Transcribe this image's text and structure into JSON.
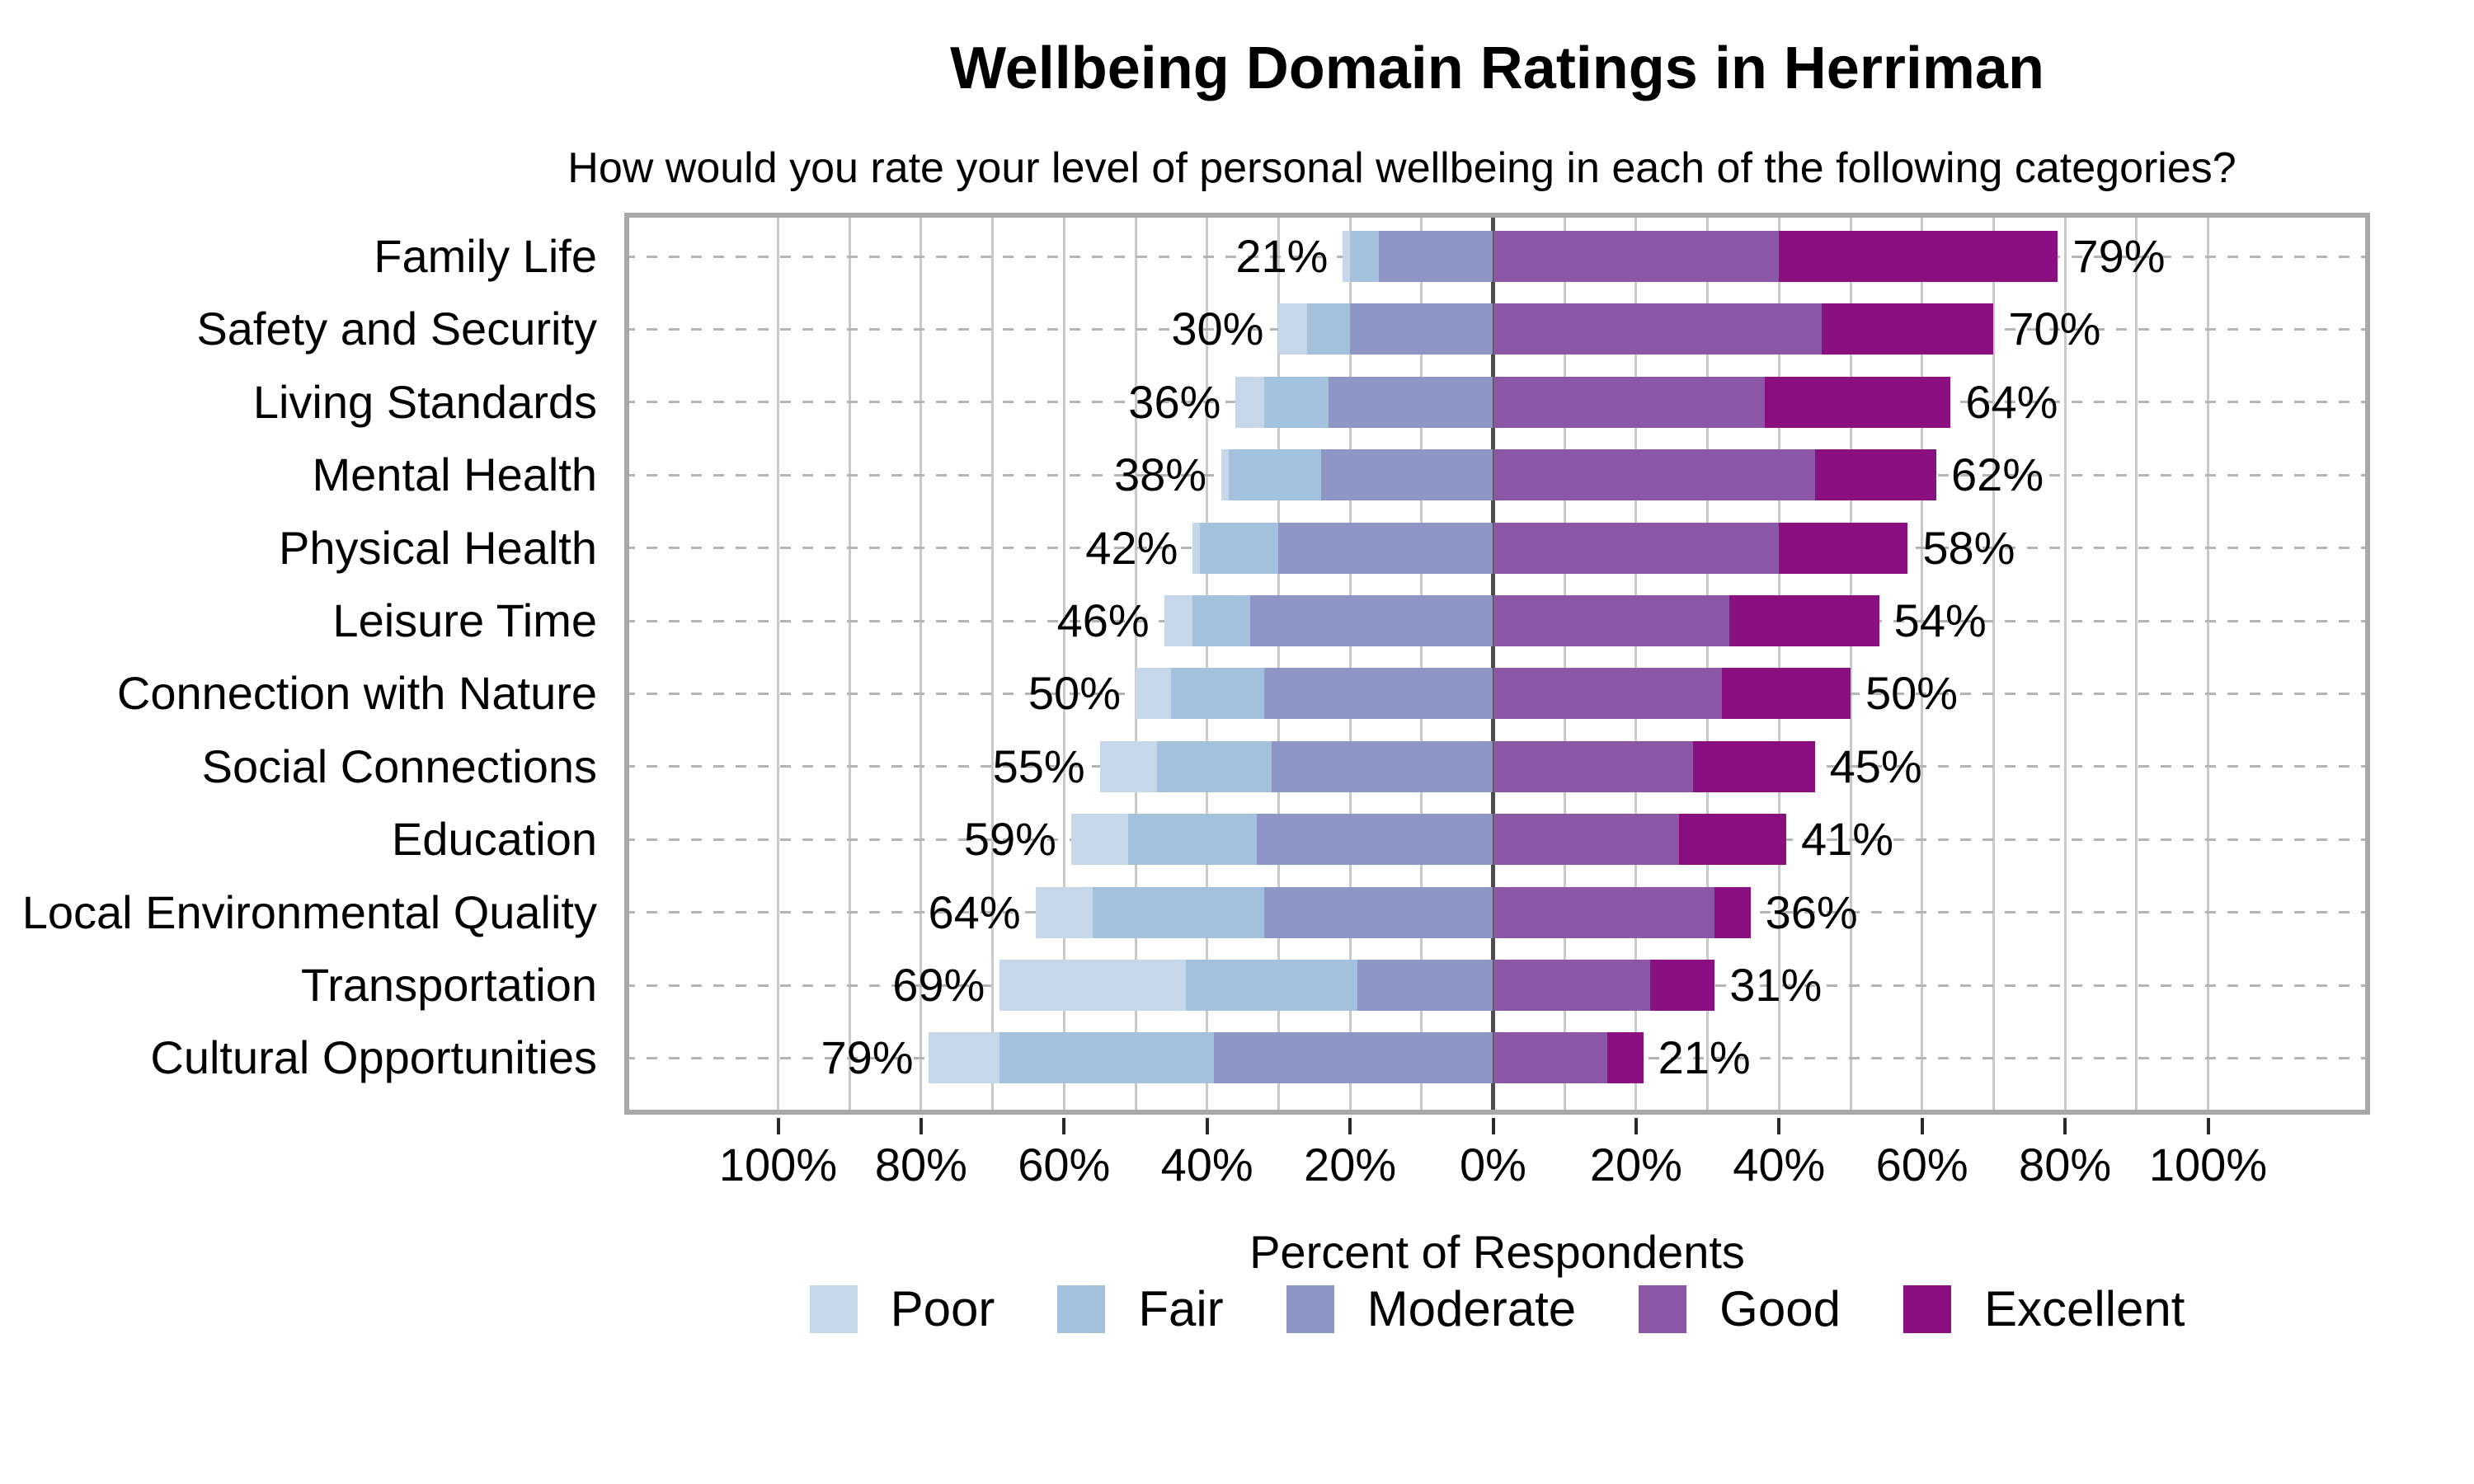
{
  "title": "Wellbeing Domain Ratings in Herriman",
  "subtitle": "How would you rate your level of personal wellbeing in each of the following categories?",
  "xlabel": "Percent of Respondents",
  "colors": {
    "frame": "#a8a8a8",
    "gridline": "#c9c9c9",
    "zero_line": "#4d4d4d",
    "row_dash": "#b4b4b4",
    "text": "#000000"
  },
  "chart_data": {
    "type": "diverging_stacked_bar",
    "orientation": "horizontal",
    "grid": "vertical gridlines every 10%, dashed horizontal line per category",
    "legend_position": "bottom",
    "xlim": [
      -122,
      122
    ],
    "categories": [
      "Family Life",
      "Safety and Security",
      "Living Standards",
      "Mental Health",
      "Physical Health",
      "Leisure Time",
      "Connection with Nature",
      "Social Connections",
      "Education",
      "Local Environmental Quality",
      "Transportation",
      "Cultural Opportunities"
    ],
    "series": [
      {
        "name": "Poor",
        "color": "#c5d7e9",
        "values": [
          1,
          4,
          4,
          1,
          1,
          4,
          5,
          8,
          8,
          8,
          26,
          10
        ]
      },
      {
        "name": "Fair",
        "color": "#a3c0dc",
        "values": [
          4,
          6,
          9,
          13,
          11,
          8,
          13,
          16,
          18,
          24,
          24,
          30
        ]
      },
      {
        "name": "Moderate",
        "color": "#8d96c7",
        "values": [
          16,
          20,
          23,
          24,
          30,
          34,
          32,
          31,
          33,
          32,
          19,
          39
        ]
      },
      {
        "name": "Good",
        "color": "#8a56a5",
        "values": [
          40,
          46,
          38,
          45,
          40,
          33,
          32,
          28,
          26,
          31,
          22,
          16
        ]
      },
      {
        "name": "Excellent",
        "color": "#8a1081",
        "values": [
          39,
          24,
          26,
          17,
          18,
          21,
          18,
          17,
          15,
          5,
          9,
          5
        ]
      }
    ],
    "left_totals": [
      21,
      30,
      36,
      38,
      42,
      46,
      50,
      55,
      59,
      64,
      69,
      79
    ],
    "right_totals": [
      79,
      70,
      64,
      62,
      58,
      54,
      50,
      45,
      41,
      36,
      31,
      21
    ],
    "left_label_format": "{v}%",
    "right_label_format": "{v}%",
    "x_ticks": [
      -100,
      -80,
      -60,
      -40,
      -20,
      0,
      20,
      40,
      60,
      80,
      100
    ],
    "x_tick_labels": [
      "100%",
      "80%",
      "60%",
      "40%",
      "20%",
      "0%",
      "20%",
      "40%",
      "60%",
      "80%",
      "100%"
    ],
    "gridline_step_pct": 10
  }
}
